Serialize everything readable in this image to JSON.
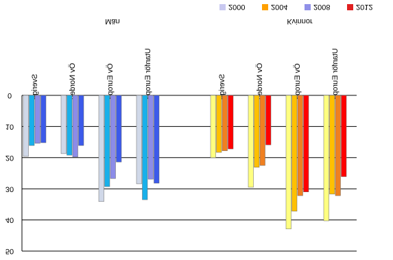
{
  "chart_data": {
    "type": "bar",
    "categories": [
      "Sverige",
      "Öv Norden",
      "Öv Europa",
      "Utanför Europa"
    ],
    "legend": [
      {
        "name": "2000",
        "color": "#c8c8f0"
      },
      {
        "name": "2004",
        "color": "#ffa000"
      },
      {
        "name": "2008",
        "color": "#9090e8"
      },
      {
        "name": "2012",
        "color": "#e02020"
      }
    ],
    "groups": [
      {
        "name": "Män",
        "series": [
          {
            "color": "#d0d8e8",
            "values": [
              19.6,
              18.7,
              34.1,
              28.4
            ]
          },
          {
            "color": "#18b0ea",
            "values": [
              16.1,
              19.2,
              29.3,
              33.5
            ]
          },
          {
            "color": "#8c8ce8",
            "values": [
              15.4,
              19.8,
              26.7,
              26.9
            ]
          },
          {
            "color": "#3c5aea",
            "values": [
              15.2,
              16.1,
              21.4,
              28.2
            ]
          }
        ]
      },
      {
        "name": "Kvinnor",
        "series": [
          {
            "color": "#ffff80",
            "values": [
              20,
              29.5,
              42.9,
              40.3
            ]
          },
          {
            "color": "#ffc000",
            "values": [
              18.3,
              23.1,
              37.2,
              31.7
            ]
          },
          {
            "color": "#f08020",
            "values": [
              17.8,
              22.5,
              32.2,
              32.2
            ]
          },
          {
            "color": "#ff0000",
            "values": [
              17.2,
              15.9,
              31,
              26.1
            ]
          }
        ]
      }
    ],
    "ylim": [
      0,
      50
    ],
    "yticks": [
      0,
      10,
      20,
      30,
      40,
      50
    ],
    "grid": true
  }
}
